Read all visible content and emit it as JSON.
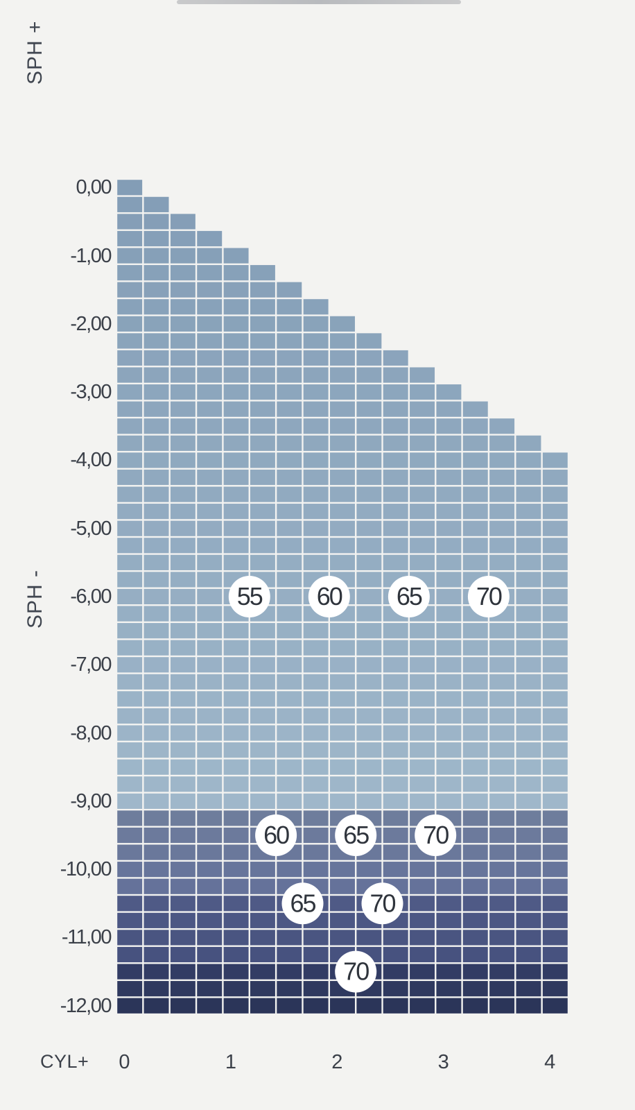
{
  "y_axis_top_title": "SPH +",
  "y_axis_bottom_title": "SPH -",
  "x_axis_title": "CYL+",
  "chart_data": {
    "type": "heatmap",
    "title": "",
    "xlabel": "CYL+",
    "ylabel": "SPH -",
    "y_ticks": [
      "0,00",
      "-1,00",
      "-2,00",
      "-3,00",
      "-4,00",
      "-5,00",
      "-6,00",
      "-7,00",
      "-8,00",
      "-9,00",
      "-10,00",
      "-11,00",
      "-12,00"
    ],
    "x_ticks": [
      "0",
      "1",
      "2",
      "3",
      "4"
    ],
    "xlim": [
      0,
      4.25
    ],
    "ylim": [
      -12,
      0
    ],
    "step": 0.25,
    "coverage_rule": "cell at (cyl, sph) filled when sph <= -cyl",
    "zones": [
      {
        "sph_from": 0,
        "sph_to": -9,
        "color_top": "#839db6",
        "color_bottom": "#9fb7ca"
      },
      {
        "sph_from": -9.25,
        "sph_to": -10.25,
        "color_top": "#6e7d9c",
        "color_bottom": "#65729a"
      },
      {
        "sph_from": -10.5,
        "sph_to": -11.25,
        "color_top": "#4f5a86",
        "color_bottom": "#47527f"
      },
      {
        "sph_from": -11.5,
        "sph_to": -12,
        "color_top": "#323c64",
        "color_bottom": "#2b3559"
      }
    ],
    "index_labels": [
      {
        "text": "55",
        "cyl": 1.0,
        "sph": -6.0
      },
      {
        "text": "60",
        "cyl": 1.75,
        "sph": -6.0
      },
      {
        "text": "65",
        "cyl": 2.5,
        "sph": -6.0
      },
      {
        "text": "70",
        "cyl": 3.25,
        "sph": -6.0
      },
      {
        "text": "60",
        "cyl": 1.25,
        "sph": -9.5
      },
      {
        "text": "65",
        "cyl": 2.0,
        "sph": -9.5
      },
      {
        "text": "70",
        "cyl": 2.75,
        "sph": -9.5
      },
      {
        "text": "65",
        "cyl": 1.5,
        "sph": -10.5
      },
      {
        "text": "70",
        "cyl": 2.25,
        "sph": -10.5
      },
      {
        "text": "70",
        "cyl": 2.0,
        "sph": -11.5
      }
    ]
  }
}
